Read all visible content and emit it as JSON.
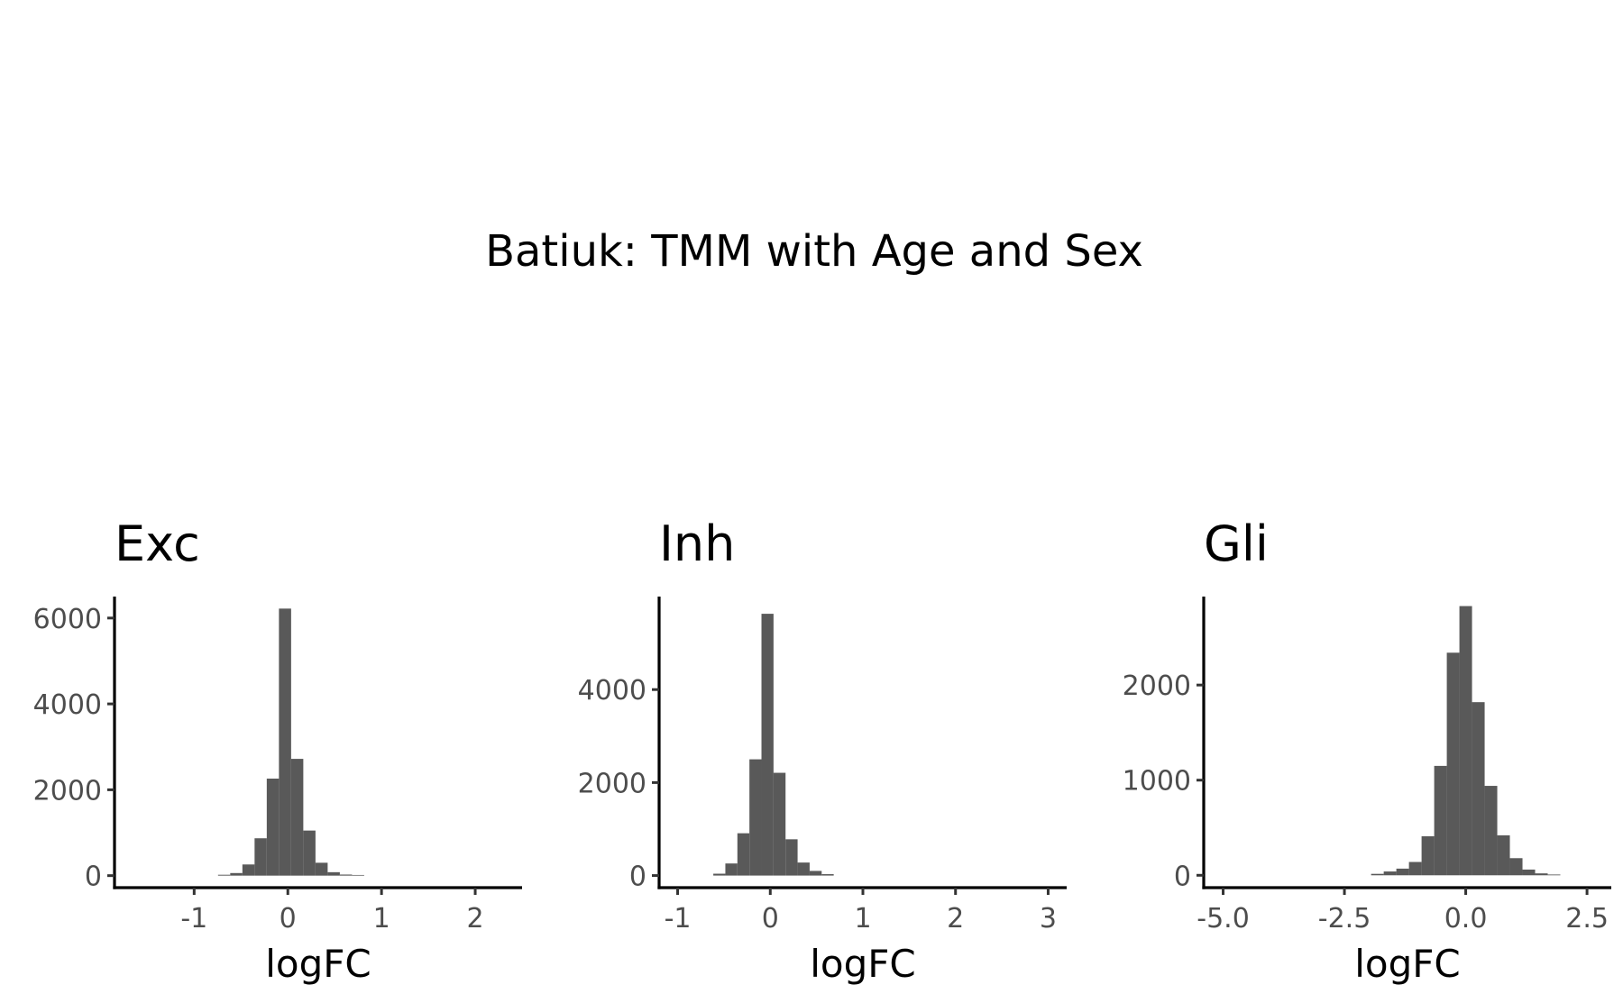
{
  "title": "Batiuk: TMM with Age and Sex",
  "chart_data": [
    {
      "type": "bar",
      "title": "Exc",
      "xlabel": "logFC",
      "ylabel": "",
      "xlim": [
        -1.85,
        2.5
      ],
      "ylim": [
        -280,
        6500
      ],
      "xticks": [
        -1,
        0,
        1,
        2
      ],
      "xtick_labels": [
        "-1",
        "0",
        "1",
        "2"
      ],
      "yticks": [
        0,
        2000,
        4000,
        6000
      ],
      "ytick_labels": [
        "0",
        "2000",
        "4000",
        "6000"
      ],
      "bin_width": 0.13,
      "bin_start": -0.745,
      "values": [
        20,
        60,
        260,
        870,
        2260,
        6220,
        2720,
        1050,
        300,
        80,
        25,
        15
      ]
    },
    {
      "type": "bar",
      "title": "Inh",
      "xlabel": "logFC",
      "ylabel": "",
      "xlim": [
        -1.2,
        3.2
      ],
      "ylim": [
        -260,
        6000
      ],
      "xticks": [
        -1,
        0,
        1,
        2,
        3
      ],
      "xtick_labels": [
        "-1",
        "0",
        "1",
        "2",
        "3"
      ],
      "yticks": [
        0,
        2000,
        4000
      ],
      "ytick_labels": [
        "0",
        "2000",
        "4000"
      ],
      "bin_width": 0.13,
      "bin_start": -0.615,
      "values": [
        40,
        260,
        910,
        2500,
        5630,
        2210,
        780,
        280,
        100,
        30
      ]
    },
    {
      "type": "bar",
      "title": "Gli",
      "xlabel": "logFC",
      "ylabel": "",
      "xlim": [
        -5.4,
        3.0
      ],
      "ylim": [
        -130,
        2930
      ],
      "xticks": [
        -5.0,
        -2.5,
        0.0,
        2.5
      ],
      "xtick_labels": [
        "-5.0",
        "-2.5",
        "0.0",
        "2.5"
      ],
      "yticks": [
        0,
        1000,
        2000
      ],
      "ytick_labels": [
        "0",
        "1000",
        "2000"
      ],
      "bin_width": 0.26,
      "bin_start": -1.95,
      "values": [
        15,
        40,
        70,
        140,
        410,
        1150,
        2340,
        2830,
        1820,
        940,
        420,
        180,
        60,
        20,
        8
      ]
    }
  ]
}
